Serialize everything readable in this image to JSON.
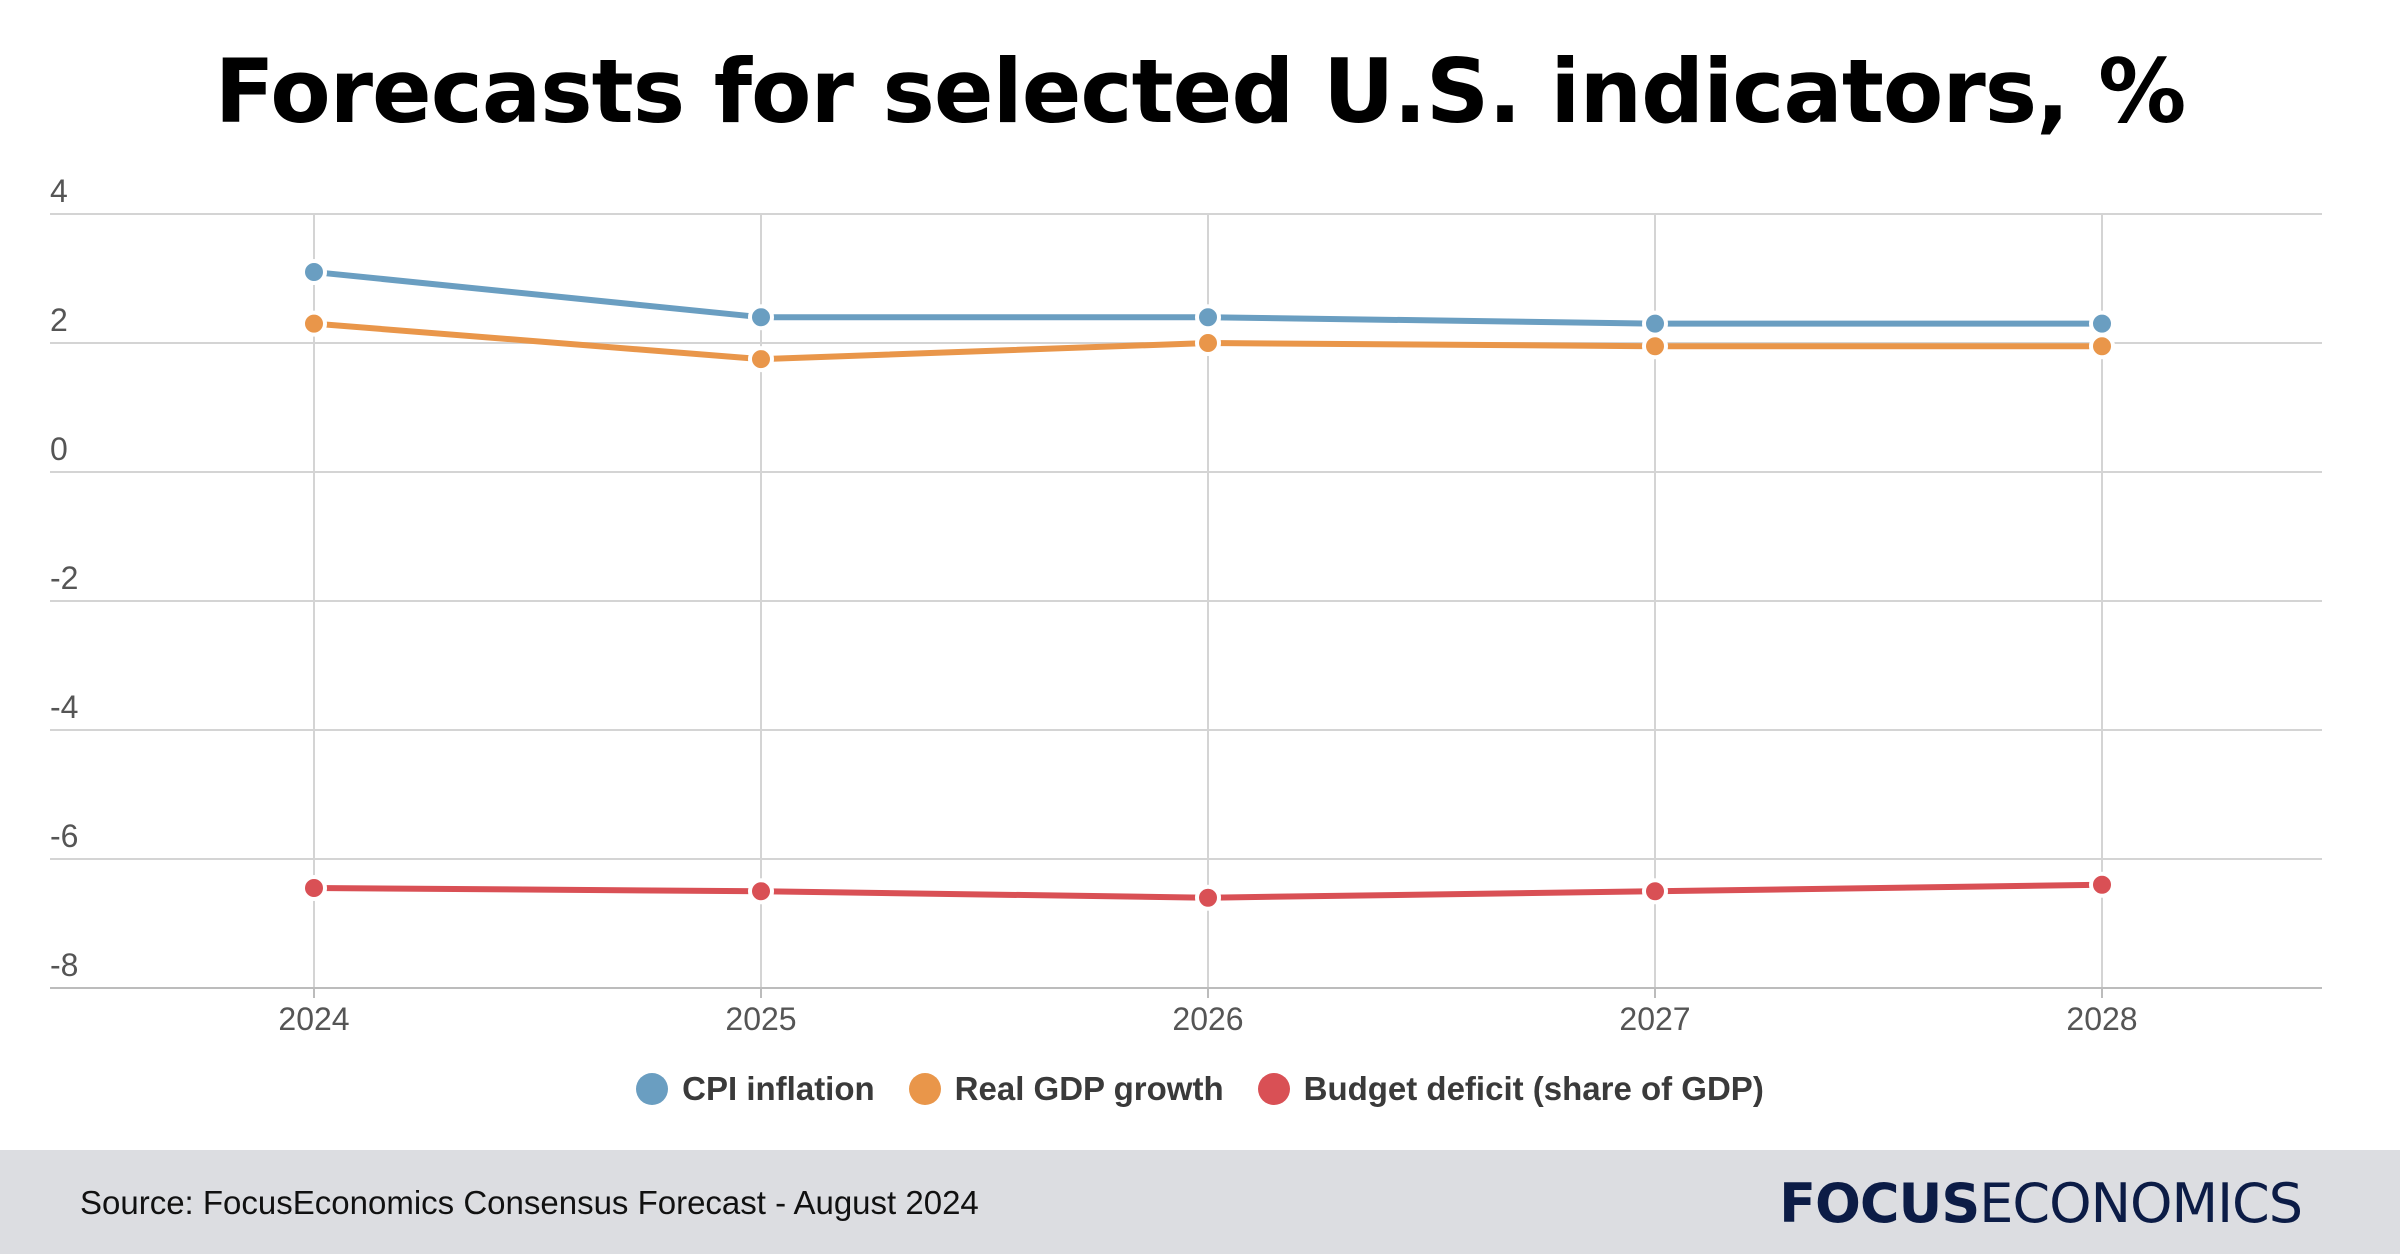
{
  "title": "Forecasts for selected U.S. indicators, %",
  "chart_data": {
    "type": "line",
    "x": [
      "2024",
      "2025",
      "2026",
      "2027",
      "2028"
    ],
    "ylim": [
      -8,
      4
    ],
    "yticks": [
      "4",
      "2",
      "0",
      "-2",
      "-4",
      "-6",
      "-8"
    ],
    "grid": true,
    "legend": "bottom",
    "series": [
      {
        "name": "CPI inflation",
        "color": "#6a9ec1",
        "values": [
          3.1,
          2.4,
          2.4,
          2.3,
          2.3
        ]
      },
      {
        "name": "Real GDP growth",
        "color": "#e9964a",
        "values": [
          2.3,
          1.75,
          2.0,
          1.95,
          1.95
        ]
      },
      {
        "name": "Budget deficit (share of GDP)",
        "color": "#d95055",
        "values": [
          -6.45,
          -6.5,
          -6.6,
          -6.5,
          -6.4
        ]
      }
    ]
  },
  "footer": {
    "source": "Source: FocusEconomics Consensus Forecast - August 2024",
    "logo_bold": "FOCUS",
    "logo_light": "ECONOMICS"
  }
}
